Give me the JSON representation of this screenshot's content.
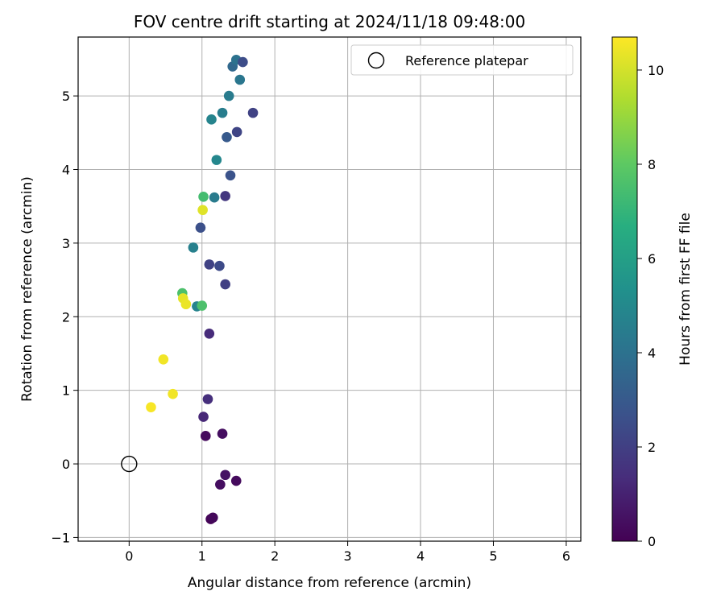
{
  "chart_data": {
    "type": "scatter",
    "title": "FOV centre drift starting at 2024/11/18 09:48:00",
    "xlabel": "Angular distance from reference (arcmin)",
    "ylabel": "Rotation from reference (arcmin)",
    "xlim": [
      -0.7,
      6.2
    ],
    "ylim": [
      -1.05,
      5.8
    ],
    "xticks": [
      0,
      1,
      2,
      3,
      4,
      5,
      6
    ],
    "yticks": [
      -1,
      0,
      1,
      2,
      3,
      4,
      5
    ],
    "xtick_labels": [
      "0",
      "1",
      "2",
      "3",
      "4",
      "5",
      "6"
    ],
    "ytick_labels": [
      "−1",
      "0",
      "1",
      "2",
      "3",
      "4",
      "5"
    ],
    "grid": true,
    "colormap": "viridis",
    "colorbar": {
      "label": "Hours from first FF file",
      "range": [
        0,
        10.7
      ],
      "ticks": [
        0,
        2,
        4,
        6,
        8,
        10
      ],
      "tick_labels": [
        "0",
        "2",
        "4",
        "6",
        "8",
        "10"
      ]
    },
    "legend": {
      "position": "top-right",
      "entries": [
        {
          "label": "Reference platepar",
          "marker": "open-circle"
        }
      ]
    },
    "reference_point": {
      "x": 0,
      "y": 0
    },
    "points": [
      {
        "x": 1.12,
        "y": -0.75,
        "c": 0.1
      },
      {
        "x": 1.15,
        "y": -0.73,
        "c": 0.2
      },
      {
        "x": 1.25,
        "y": -0.28,
        "c": 0.4
      },
      {
        "x": 1.47,
        "y": -0.23,
        "c": 0.3
      },
      {
        "x": 1.32,
        "y": -0.15,
        "c": 0.5
      },
      {
        "x": 1.05,
        "y": 0.38,
        "c": 0.3
      },
      {
        "x": 1.28,
        "y": 0.41,
        "c": 0.4
      },
      {
        "x": 1.02,
        "y": 0.64,
        "c": 1.2
      },
      {
        "x": 1.08,
        "y": 0.88,
        "c": 1.4
      },
      {
        "x": 1.1,
        "y": 1.77,
        "c": 1.3
      },
      {
        "x": 1.32,
        "y": 2.44,
        "c": 2.0
      },
      {
        "x": 1.1,
        "y": 2.71,
        "c": 2.1
      },
      {
        "x": 1.24,
        "y": 2.69,
        "c": 2.4
      },
      {
        "x": 0.98,
        "y": 3.21,
        "c": 2.6
      },
      {
        "x": 0.88,
        "y": 2.94,
        "c": 4.6
      },
      {
        "x": 0.93,
        "y": 2.14,
        "c": 4.8
      },
      {
        "x": 1.32,
        "y": 3.64,
        "c": 1.7
      },
      {
        "x": 1.17,
        "y": 3.62,
        "c": 4.4
      },
      {
        "x": 1.39,
        "y": 3.92,
        "c": 2.7
      },
      {
        "x": 1.2,
        "y": 4.13,
        "c": 4.9
      },
      {
        "x": 1.34,
        "y": 4.44,
        "c": 3.0
      },
      {
        "x": 1.48,
        "y": 4.51,
        "c": 2.2
      },
      {
        "x": 1.13,
        "y": 4.68,
        "c": 4.8
      },
      {
        "x": 1.28,
        "y": 4.77,
        "c": 4.5
      },
      {
        "x": 1.7,
        "y": 4.77,
        "c": 2.1
      },
      {
        "x": 1.37,
        "y": 5.0,
        "c": 4.4
      },
      {
        "x": 1.52,
        "y": 5.22,
        "c": 4.2
      },
      {
        "x": 1.42,
        "y": 5.4,
        "c": 3.6
      },
      {
        "x": 1.47,
        "y": 5.49,
        "c": 4.0
      },
      {
        "x": 1.56,
        "y": 5.46,
        "c": 2.5
      },
      {
        "x": 1.02,
        "y": 3.63,
        "c": 7.4
      },
      {
        "x": 1.01,
        "y": 3.45,
        "c": 10.2
      },
      {
        "x": 0.73,
        "y": 2.32,
        "c": 7.6
      },
      {
        "x": 1.0,
        "y": 2.15,
        "c": 7.6
      },
      {
        "x": 0.74,
        "y": 2.25,
        "c": 10.3
      },
      {
        "x": 0.78,
        "y": 2.17,
        "c": 10.4
      },
      {
        "x": 0.47,
        "y": 1.42,
        "c": 10.5
      },
      {
        "x": 0.6,
        "y": 0.95,
        "c": 10.5
      },
      {
        "x": 0.3,
        "y": 0.77,
        "c": 10.6
      }
    ]
  }
}
